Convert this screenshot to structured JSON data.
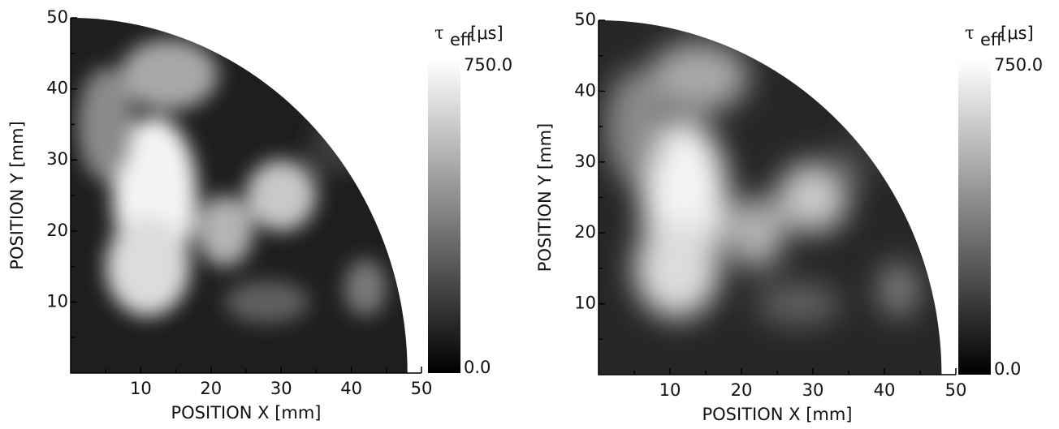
{
  "chart_data": [
    {
      "type": "heatmap",
      "xlabel": "POSITION X [mm]",
      "ylabel": "POSITION Y [mm]",
      "xlim": [
        0,
        50
      ],
      "ylim": [
        0,
        50
      ],
      "xticks": [
        10,
        20,
        30,
        40,
        50
      ],
      "yticks": [
        10,
        20,
        30,
        40,
        50
      ],
      "colorbar": {
        "symbol": "τ",
        "subscript": "eff",
        "unit": "[μs]",
        "clim": [
          0,
          750
        ],
        "ticks": [
          {
            "value": 0,
            "label": "0.0"
          },
          {
            "value": 750,
            "label": "750.0"
          }
        ]
      }
    },
    {
      "type": "heatmap",
      "xlabel": "POSITION X [mm]",
      "ylabel": "POSITION Y [mm]",
      "xlim": [
        0,
        50
      ],
      "ylim": [
        0,
        50
      ],
      "xticks": [
        10,
        20,
        30,
        40,
        50
      ],
      "yticks": [
        10,
        20,
        30,
        40,
        50
      ],
      "colorbar": {
        "symbol": "τ",
        "subscript": "eff",
        "unit": "[μs]",
        "clim": [
          0,
          750
        ],
        "ticks": [
          {
            "value": 0,
            "label": "0.0"
          },
          {
            "value": 750,
            "label": "750.0"
          }
        ]
      }
    }
  ]
}
